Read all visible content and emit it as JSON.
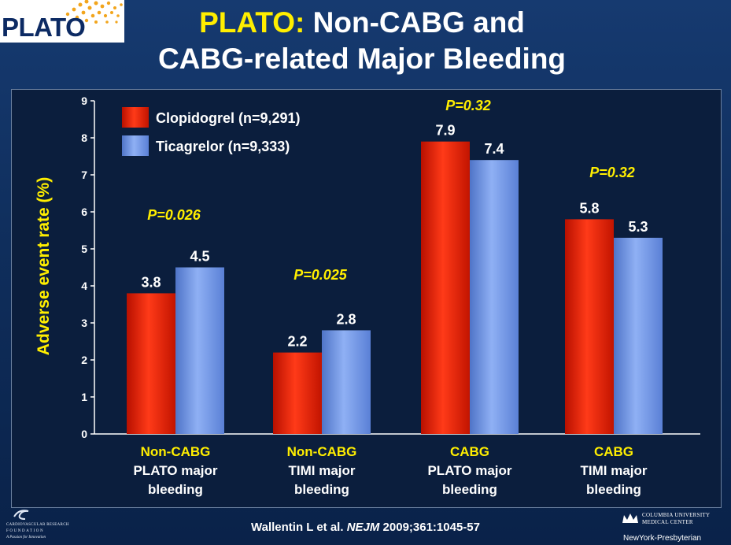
{
  "logo": {
    "text": "PLATO"
  },
  "title": {
    "accent": "PLATO:",
    "line1_rest": " Non-CABG and",
    "line2": "CABG-related Major Bleeding"
  },
  "colors": {
    "clopidogrel": "#e8230a",
    "ticagrelor": "#6f96e6",
    "pvalue": "#ffee00",
    "category_first_line": "#ffee00",
    "text": "#ffffff"
  },
  "chart_data": {
    "type": "bar",
    "ylabel": "Adverse event rate (%)",
    "ylim": [
      0,
      9
    ],
    "yticks": [
      "0",
      "1",
      "2",
      "3",
      "4",
      "5",
      "6",
      "7",
      "8",
      "9"
    ],
    "legend_position": "top-left",
    "categories": [
      {
        "line1": "Non-CABG",
        "line2": "PLATO major",
        "line3": "bleeding"
      },
      {
        "line1": "Non-CABG",
        "line2": "TIMI major",
        "line3": "bleeding"
      },
      {
        "line1": "CABG",
        "line2": "PLATO major",
        "line3": "bleeding"
      },
      {
        "line1": "CABG",
        "line2": "TIMI major",
        "line3": "bleeding"
      }
    ],
    "series": [
      {
        "name": "Clopidogrel (n=9,291)",
        "values": [
          3.8,
          2.2,
          7.9,
          5.8
        ],
        "labels": [
          "3.8",
          "2.2",
          "7.9",
          "5.8"
        ]
      },
      {
        "name": "Ticagrelor (n=9,333)",
        "values": [
          4.5,
          2.8,
          7.4,
          5.3
        ],
        "labels": [
          "4.5",
          "2.8",
          "7.4",
          "5.3"
        ]
      }
    ],
    "p_values": [
      "P=0.026",
      "P=0.025",
      "P=0.32",
      "P=0.32"
    ]
  },
  "footer": {
    "citation_authors": "Wallentin L et al. ",
    "citation_journal": "NEJM",
    "citation_rest": " 2009;361:1045-57",
    "crf_name": "CARDIOVASCULAR RESEARCH",
    "crf_sub": "FOUNDATION",
    "crf_tagline": "A Passion for Innovation",
    "cumc_line1": "COLUMBIA UNIVERSITY",
    "cumc_line2": "MEDICAL CENTER",
    "nyp": "NewYork-Presbyterian"
  }
}
